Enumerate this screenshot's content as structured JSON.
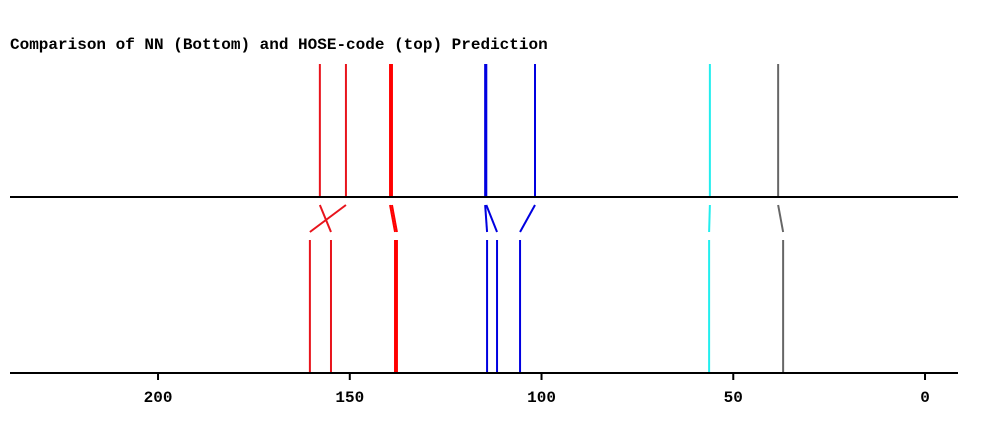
{
  "chart_data": {
    "type": "shift",
    "title": "Comparison of NN (Bottom) and HOSE-code (top) Prediction",
    "xlim": [
      238.6,
      -8.6
    ],
    "xticks": [
      200,
      150,
      100,
      50,
      0
    ],
    "pairs": [
      {
        "top": 157.8,
        "bottom": 154.9,
        "color": "#e8141c"
      },
      {
        "top": 151.0,
        "bottom": 160.4,
        "color": "#e8141c"
      },
      {
        "top": 139.5,
        "bottom": 138.2,
        "color": "#ff0000"
      },
      {
        "top": 139.0,
        "bottom": 137.7,
        "color": "#ff0000"
      },
      {
        "top": 114.7,
        "bottom": 114.2,
        "color": "#0000e0"
      },
      {
        "top": 114.4,
        "bottom": 111.6,
        "color": "#0000e0"
      },
      {
        "top": 101.7,
        "bottom": 105.6,
        "color": "#0000e0"
      },
      {
        "top": 56.1,
        "bottom": 56.3,
        "color": "#22eeee"
      },
      {
        "top": 38.3,
        "bottom": 37.0,
        "color": "#666666"
      }
    ]
  }
}
